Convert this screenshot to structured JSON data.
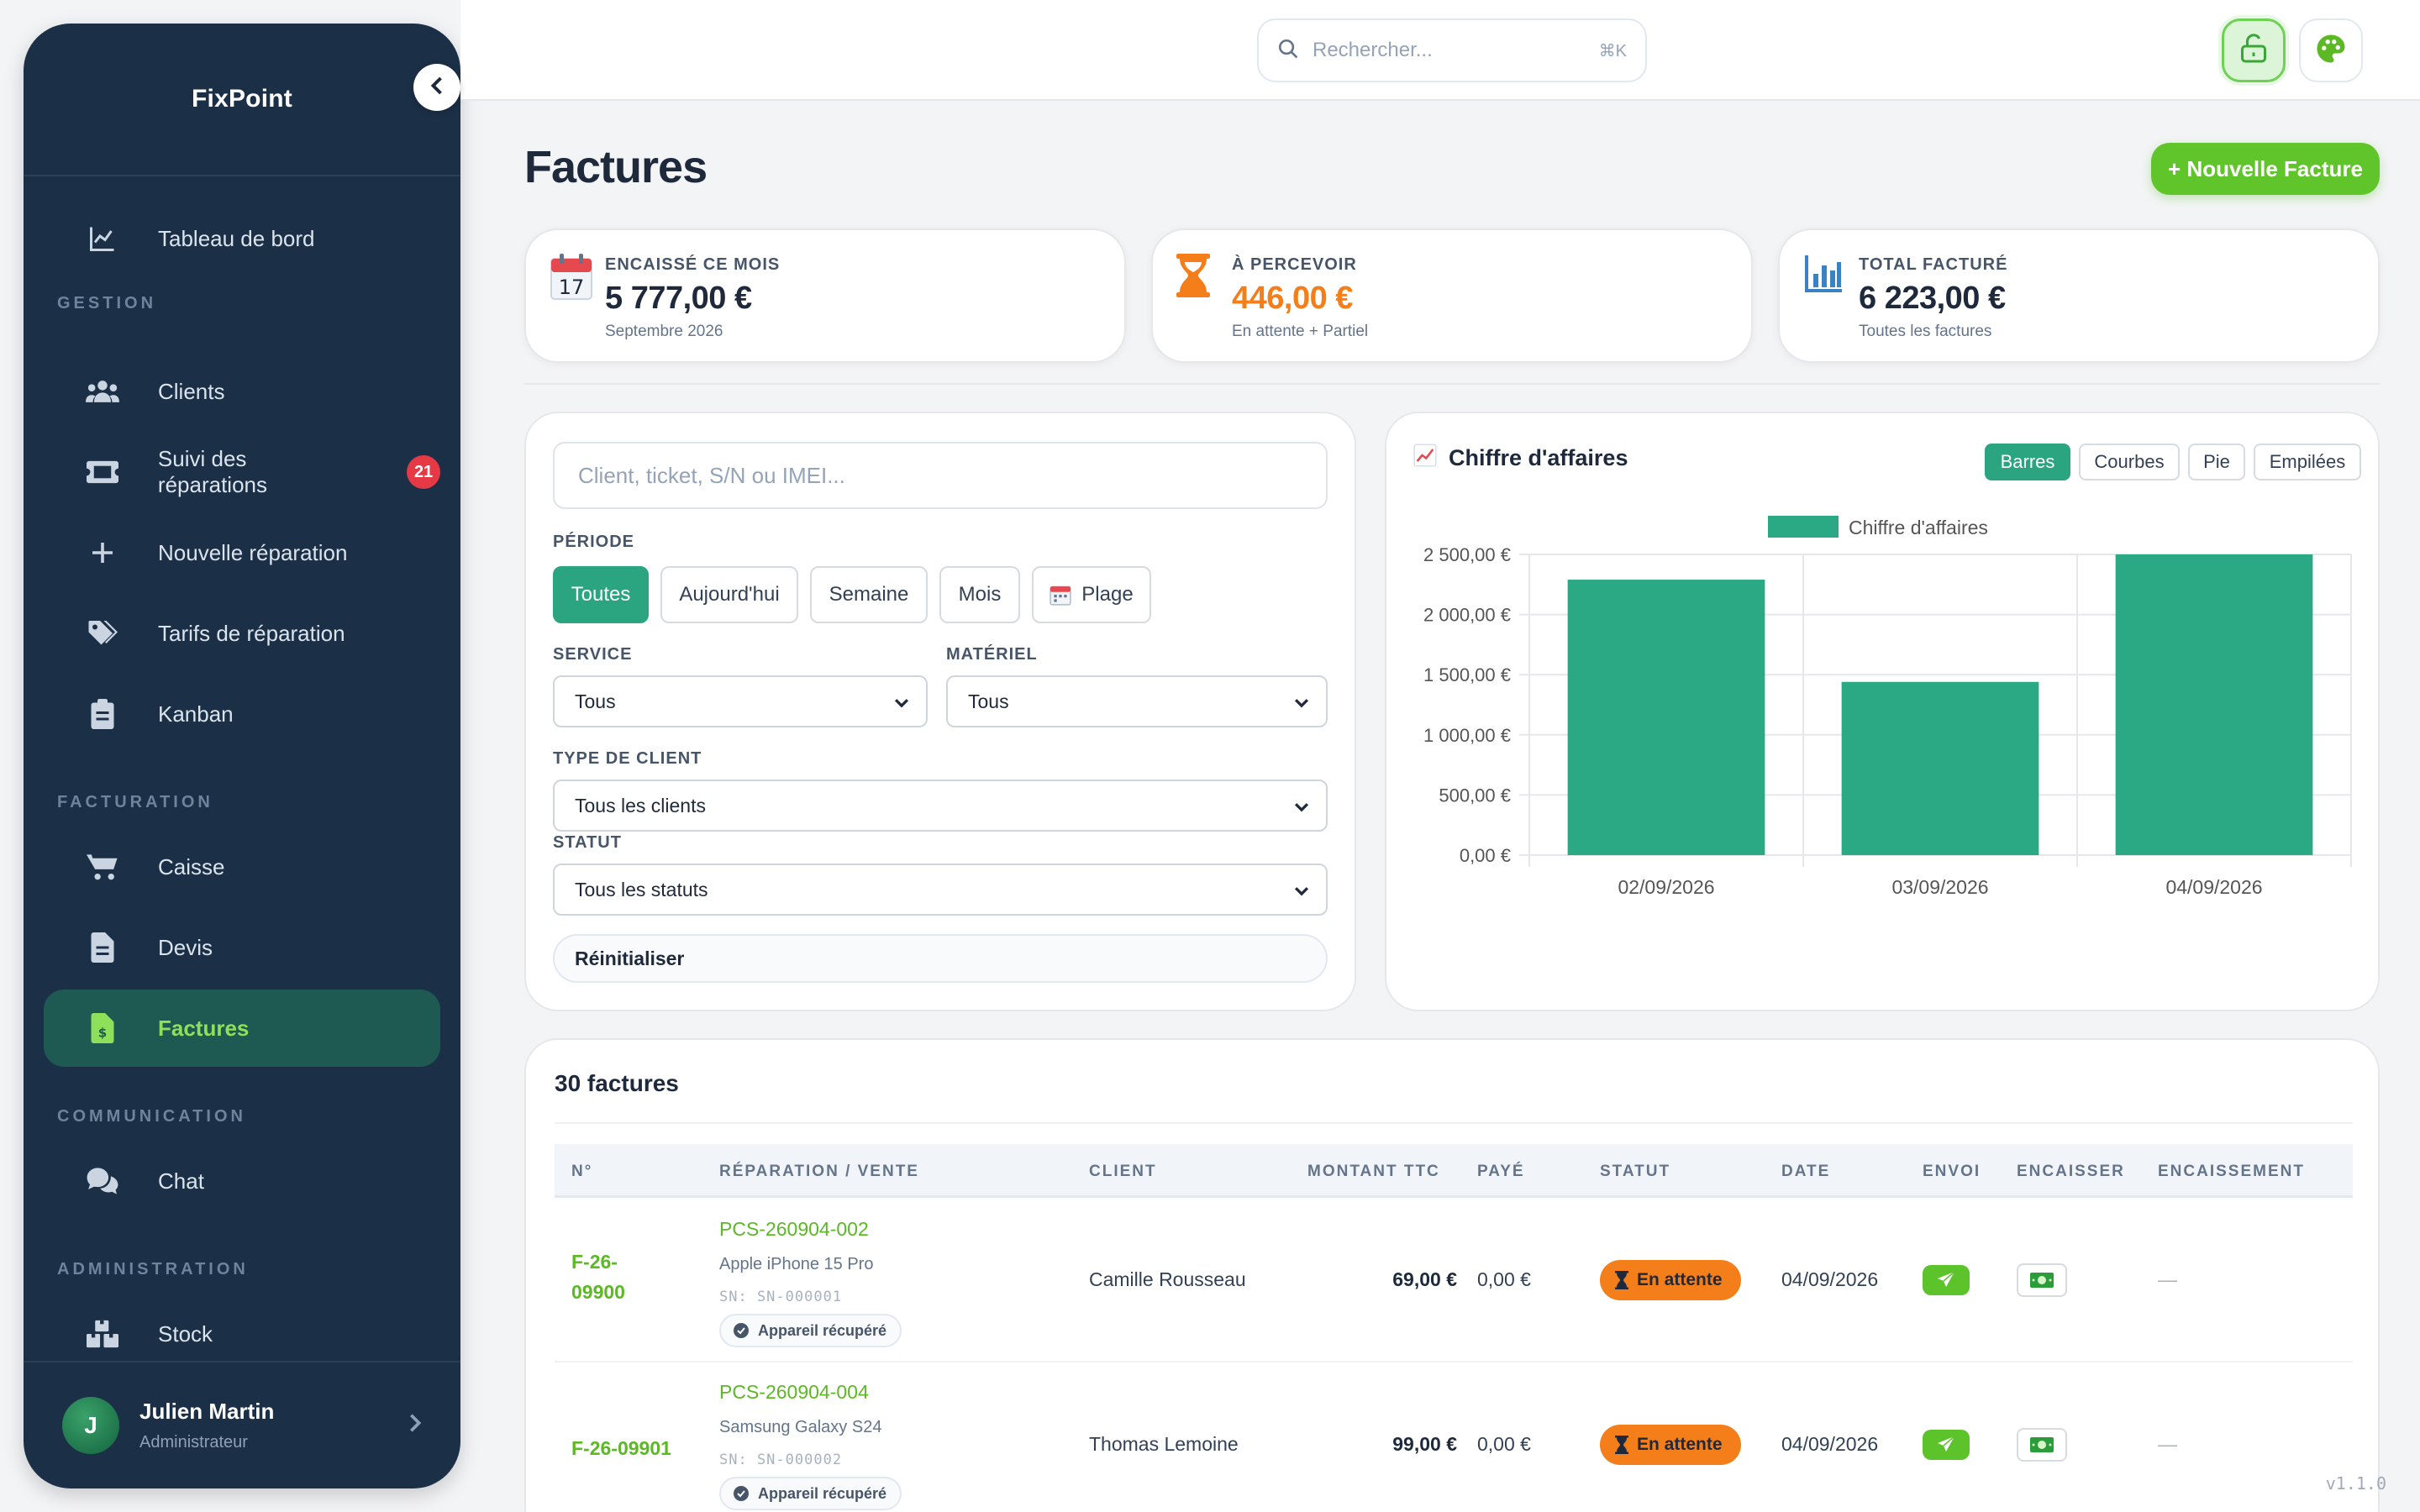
{
  "app": {
    "name": "FixPoint",
    "version": "v1.1.0"
  },
  "sidebar": {
    "items": [
      {
        "id": "dashboard",
        "label": "Tableau de bord",
        "icon": "chart-line-icon"
      },
      {
        "id": "clients",
        "label": "Clients",
        "icon": "users-icon"
      },
      {
        "id": "repairs",
        "label": "Suivi des réparations",
        "icon": "ticket-icon",
        "badge": "21"
      },
      {
        "id": "new-repair",
        "label": "Nouvelle réparation",
        "icon": "plus-icon"
      },
      {
        "id": "pricing",
        "label": "Tarifs de réparation",
        "icon": "tags-icon"
      },
      {
        "id": "kanban",
        "label": "Kanban",
        "icon": "clipboard-icon"
      },
      {
        "id": "cashier",
        "label": "Caisse",
        "icon": "cart-icon"
      },
      {
        "id": "quotes",
        "label": "Devis",
        "icon": "document-icon"
      },
      {
        "id": "invoices",
        "label": "Factures",
        "icon": "invoice-icon",
        "active": true
      },
      {
        "id": "chat",
        "label": "Chat",
        "icon": "chat-icon"
      },
      {
        "id": "stock",
        "label": "Stock",
        "icon": "boxes-icon"
      }
    ],
    "sections": {
      "gestion": "GESTION",
      "facturation": "FACTURATION",
      "communication": "COMMUNICATION",
      "administration": "ADMINISTRATION"
    },
    "user": {
      "initial": "J",
      "name": "Julien Martin",
      "role": "Administrateur"
    }
  },
  "topbar": {
    "search_placeholder": "Rechercher...",
    "search_shortcut": "⌘K"
  },
  "page": {
    "title": "Factures",
    "new_button": "+ Nouvelle Facture"
  },
  "stats": [
    {
      "label": "ENCAISSÉ CE MOIS",
      "value": "5 777,00 €",
      "sub": "Septembre 2026",
      "icon": "calendar-icon",
      "calendar_day": "17",
      "color": "#1e293b"
    },
    {
      "label": "À PERCEVOIR",
      "value": "446,00 €",
      "sub": "En attente + Partiel",
      "icon": "hourglass-icon",
      "color": "#f47f1a"
    },
    {
      "label": "TOTAL FACTURÉ",
      "value": "6 223,00 €",
      "sub": "Toutes les factures",
      "icon": "bar-chart-icon",
      "color": "#1e293b"
    }
  ],
  "filters": {
    "search_placeholder": "Client, ticket, S/N ou IMEI...",
    "period_label": "PÉRIODE",
    "period_options": [
      "Toutes",
      "Aujourd'hui",
      "Semaine",
      "Mois",
      "Plage"
    ],
    "period_active": "Toutes",
    "service_label": "SERVICE",
    "service_value": "Tous",
    "material_label": "MATÉRIEL",
    "material_value": "Tous",
    "client_type_label": "TYPE DE CLIENT",
    "client_type_value": "Tous les clients",
    "status_label": "STATUT",
    "status_value": "Tous les statuts",
    "reset_label": "Réinitialiser"
  },
  "chart_panel": {
    "title": "Chiffre d'affaires",
    "types": [
      "Barres",
      "Courbes",
      "Pie",
      "Empilées"
    ],
    "active_type": "Barres"
  },
  "chart_data": {
    "type": "bar",
    "categories": [
      "02/09/2026",
      "03/09/2026",
      "04/09/2026"
    ],
    "series": [
      {
        "name": "Chiffre d'affaires",
        "values": [
          2290,
          1440,
          2500
        ],
        "color": "#2ba884"
      }
    ],
    "yticks": [
      "0,00 €",
      "500,00 €",
      "1 000,00 €",
      "1 500,00 €",
      "2 000,00 €",
      "2 500,00 €"
    ],
    "ylim": [
      0,
      2500
    ],
    "grid": true,
    "legend": "top"
  },
  "table": {
    "title": "30 factures",
    "columns": [
      "N°",
      "RÉPARATION / VENTE",
      "CLIENT",
      "MONTANT TTC",
      "PAYÉ",
      "STATUT",
      "DATE",
      "ENVOI",
      "ENCAISSER",
      "ENCAISSEMENT"
    ],
    "rows": [
      {
        "number_line1": "F-26-",
        "number_line2": "09900",
        "repair_id": "PCS-260904-002",
        "device": "Apple iPhone 15 Pro",
        "serial": "SN: SN-000001",
        "repair_tag": "Appareil récupéré",
        "client": "Camille Rousseau",
        "amount": "69,00 €",
        "paid": "0,00 €",
        "status": "En attente",
        "date": "04/09/2026",
        "settlement": "—"
      },
      {
        "number_line1": "F-26-09901",
        "number_line2": "",
        "repair_id": "PCS-260904-004",
        "device": "Samsung Galaxy S24",
        "serial": "SN: SN-000002",
        "repair_tag": "Appareil récupéré",
        "client": "Thomas Lemoine",
        "amount": "99,00 €",
        "paid": "0,00 €",
        "status": "En attente",
        "date": "04/09/2026",
        "settlement": "—"
      }
    ]
  }
}
